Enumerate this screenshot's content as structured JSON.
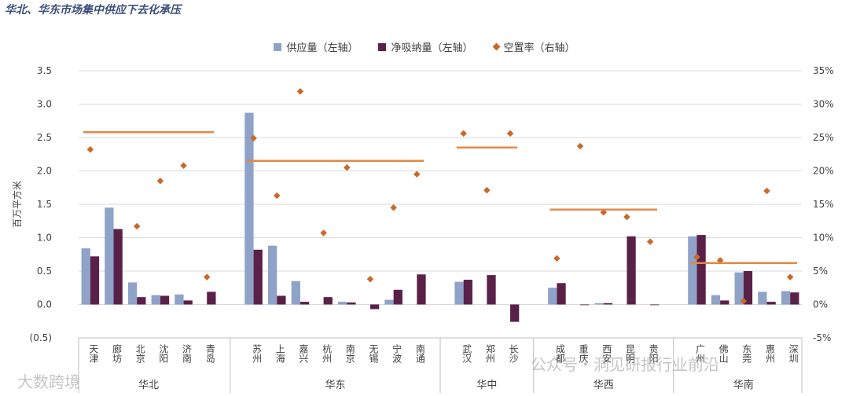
{
  "title": "华北、华东市场集中供应下去化承压",
  "chart_data": {
    "type": "bar",
    "ylabel": "百万平方米",
    "ylim": [
      -0.5,
      3.5
    ],
    "yticks": [
      "(0.5)",
      "0.0",
      "0.5",
      "1.0",
      "1.5",
      "2.0",
      "2.5",
      "3.0",
      "3.5"
    ],
    "y2lim": [
      -5,
      35
    ],
    "y2ticks": [
      "-5%",
      "0%",
      "5%",
      "10%",
      "15%",
      "20%",
      "25%",
      "30%",
      "35%"
    ],
    "legend": [
      "供应量（左轴）",
      "净吸纳量（左轴）",
      "空置率（右轴）"
    ],
    "colors": {
      "supply": "#8fa2c8",
      "absorption": "#5a2148",
      "vacancy": "#c8692b",
      "avg": "#e08a45"
    },
    "groups": [
      {
        "name": "华北",
        "avg_vacancy": 25.8,
        "cities": [
          {
            "name": "天津",
            "supply": 0.84,
            "absorption": 0.72,
            "vacancy": 23.2
          },
          {
            "name": "廊坊",
            "supply": 1.45,
            "absorption": 1.13,
            "vacancy": null
          },
          {
            "name": "北京",
            "supply": 0.33,
            "absorption": 0.11,
            "vacancy": 11.7
          },
          {
            "name": "沈阳",
            "supply": 0.14,
            "absorption": 0.13,
            "vacancy": 18.5
          },
          {
            "name": "济南",
            "supply": 0.15,
            "absorption": 0.06,
            "vacancy": 20.8
          },
          {
            "name": "青岛",
            "supply": 0.0,
            "absorption": 0.19,
            "vacancy": 4.1
          }
        ]
      },
      {
        "name": "华东",
        "avg_vacancy": 21.5,
        "cities": [
          {
            "name": "苏州",
            "supply": 2.87,
            "absorption": 0.82,
            "vacancy": 24.9
          },
          {
            "name": "上海",
            "supply": 0.88,
            "absorption": 0.13,
            "vacancy": 16.3
          },
          {
            "name": "嘉兴",
            "supply": 0.35,
            "absorption": 0.04,
            "vacancy": 31.9
          },
          {
            "name": "杭州",
            "supply": 0.0,
            "absorption": 0.11,
            "vacancy": 10.7
          },
          {
            "name": "南京",
            "supply": 0.04,
            "absorption": 0.03,
            "vacancy": 20.5
          },
          {
            "name": "无锡",
            "supply": 0.0,
            "absorption": -0.07,
            "vacancy": 3.8
          },
          {
            "name": "宁波",
            "supply": 0.07,
            "absorption": 0.22,
            "vacancy": 14.5
          },
          {
            "name": "南通",
            "supply": 0.0,
            "absorption": 0.45,
            "vacancy": 19.5
          }
        ]
      },
      {
        "name": "华中",
        "avg_vacancy": 23.5,
        "cities": [
          {
            "name": "武汉",
            "supply": 0.34,
            "absorption": 0.37,
            "vacancy": 25.6
          },
          {
            "name": "郑州",
            "supply": 0.0,
            "absorption": 0.44,
            "vacancy": 17.1
          },
          {
            "name": "长沙",
            "supply": 0.0,
            "absorption": -0.26,
            "vacancy": 25.6
          }
        ]
      },
      {
        "name": "华西",
        "avg_vacancy": 14.2,
        "cities": [
          {
            "name": "成都",
            "supply": 0.25,
            "absorption": 0.32,
            "vacancy": 6.9
          },
          {
            "name": "重庆",
            "supply": 0.0,
            "absorption": -0.01,
            "vacancy": 23.7
          },
          {
            "name": "西安",
            "supply": 0.02,
            "absorption": 0.02,
            "vacancy": 13.8
          },
          {
            "name": "昆明",
            "supply": 0.0,
            "absorption": 1.02,
            "vacancy": 13.1
          },
          {
            "name": "贵阳",
            "supply": 0.0,
            "absorption": -0.01,
            "vacancy": 9.4
          }
        ]
      },
      {
        "name": "华南",
        "avg_vacancy": 6.2,
        "cities": [
          {
            "name": "广州",
            "supply": 1.02,
            "absorption": 1.04,
            "vacancy": 7.1
          },
          {
            "name": "佛山",
            "supply": 0.14,
            "absorption": 0.06,
            "vacancy": 6.6
          },
          {
            "name": "东莞",
            "supply": 0.48,
            "absorption": 0.5,
            "vacancy": 0.5
          },
          {
            "name": "惠州",
            "supply": 0.19,
            "absorption": 0.04,
            "vacancy": 17.0
          },
          {
            "name": "深圳",
            "supply": 0.2,
            "absorption": 0.18,
            "vacancy": 4.1
          }
        ]
      }
    ]
  },
  "watermarks": {
    "left": "大数跨境",
    "right": "公众号・洞见研报行业前沿"
  }
}
